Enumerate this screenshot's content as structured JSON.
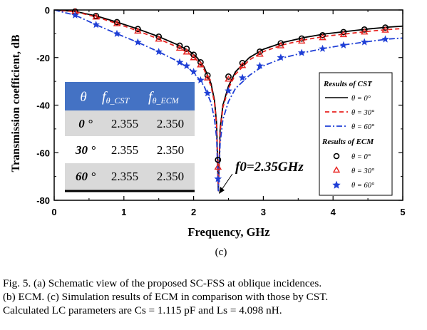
{
  "chart_data": {
    "type": "line",
    "xlabel": "Frequency, GHz",
    "ylabel": "Transmission coefficient, dB",
    "xlim": [
      0,
      5
    ],
    "ylim": [
      -80,
      0
    ],
    "xticks": [
      "0",
      "1",
      "2",
      "3",
      "4",
      "5"
    ],
    "yticks": [
      "0",
      "-20",
      "-40",
      "-60",
      "-80"
    ],
    "panel_label": "(c)",
    "series": [
      {
        "name": "θ = 0°",
        "group": "CST",
        "style": "solid",
        "color": "#000000",
        "x": [
          0,
          0.3,
          0.6,
          0.9,
          1.2,
          1.5,
          1.8,
          1.95,
          2.05,
          2.15,
          2.25,
          2.3,
          2.33,
          2.355,
          2.38,
          2.42,
          2.5,
          2.6,
          2.8,
          3.0,
          3.3,
          3.6,
          3.9,
          4.2,
          4.5,
          4.8,
          5.0
        ],
        "y": [
          0,
          -0.6,
          -2.5,
          -5.1,
          -8,
          -11.2,
          -15,
          -17.5,
          -20,
          -24,
          -31,
          -38,
          -48,
          -76,
          -50,
          -40,
          -32,
          -26,
          -20,
          -16.5,
          -13.5,
          -11.5,
          -10,
          -9,
          -8,
          -7.2,
          -6.8
        ]
      },
      {
        "name": "θ = 30°",
        "group": "CST",
        "style": "dashed",
        "color": "#e8211e",
        "x": [
          0,
          0.3,
          0.6,
          0.9,
          1.2,
          1.5,
          1.8,
          1.95,
          2.05,
          2.15,
          2.25,
          2.3,
          2.33,
          2.355,
          2.38,
          2.42,
          2.5,
          2.6,
          2.8,
          3.0,
          3.3,
          3.6,
          3.9,
          4.2,
          4.5,
          4.8,
          5.0
        ],
        "y": [
          0,
          -0.7,
          -2.9,
          -5.7,
          -8.8,
          -12.2,
          -16,
          -18.6,
          -21.2,
          -25,
          -32,
          -39,
          -49,
          -76,
          -51,
          -41,
          -33,
          -27,
          -21,
          -17.5,
          -14.5,
          -12.5,
          -11,
          -10,
          -9,
          -8.2,
          -7.8
        ]
      },
      {
        "name": "θ = 60°",
        "group": "CST",
        "style": "dashdot",
        "color": "#1f3fd6",
        "x": [
          0,
          0.3,
          0.6,
          0.9,
          1.2,
          1.5,
          1.8,
          1.95,
          2.05,
          2.15,
          2.25,
          2.3,
          2.33,
          2.355,
          2.38,
          2.42,
          2.5,
          2.6,
          2.8,
          3.0,
          3.3,
          3.6,
          3.9,
          4.2,
          4.5,
          4.8,
          5.0
        ],
        "y": [
          0,
          -2.2,
          -6.2,
          -10,
          -13.6,
          -17.6,
          -22,
          -25,
          -28,
          -32,
          -39,
          -46,
          -54,
          -76,
          -56,
          -46,
          -38.5,
          -33,
          -27.5,
          -23.5,
          -20,
          -17.8,
          -16,
          -14.5,
          -13.3,
          -12.2,
          -11.8
        ]
      },
      {
        "name": "θ = 0°",
        "group": "ECM",
        "marker": "circle",
        "color": "#000000",
        "x": [
          0.3,
          0.6,
          0.9,
          1.2,
          1.5,
          1.8,
          1.9,
          2.0,
          2.1,
          2.2,
          2.35,
          2.5,
          2.7,
          2.95,
          3.25,
          3.55,
          3.85,
          4.15,
          4.45,
          4.75
        ],
        "y": [
          -0.6,
          -2.5,
          -5.1,
          -8,
          -11.2,
          -15,
          -16.3,
          -18.8,
          -22,
          -27.5,
          -63,
          -28,
          -22.3,
          -17.5,
          -14,
          -12,
          -10.6,
          -9.3,
          -8.2,
          -7.4
        ]
      },
      {
        "name": "θ = 30°",
        "group": "ECM",
        "marker": "triangle",
        "color": "#e8211e",
        "x": [
          0.3,
          0.6,
          0.9,
          1.2,
          1.5,
          1.8,
          1.9,
          2.0,
          2.1,
          2.2,
          2.35,
          2.5,
          2.7,
          2.95,
          3.25,
          3.55,
          3.85,
          4.15,
          4.45,
          4.75
        ],
        "y": [
          -0.7,
          -2.9,
          -5.7,
          -8.8,
          -12.2,
          -16,
          -17.6,
          -20,
          -23,
          -28.5,
          -66,
          -29,
          -23.3,
          -18.5,
          -15,
          -13,
          -11.6,
          -10.3,
          -9.2,
          -8.4
        ]
      },
      {
        "name": "θ = 60°",
        "group": "ECM",
        "marker": "star",
        "color": "#1f3fd6",
        "x": [
          0.3,
          0.6,
          0.9,
          1.2,
          1.5,
          1.8,
          1.9,
          2.0,
          2.1,
          2.2,
          2.35,
          2.5,
          2.7,
          2.95,
          3.25,
          3.55,
          3.85,
          4.15,
          4.45,
          4.75
        ],
        "y": [
          -2.2,
          -6.2,
          -10,
          -13.6,
          -17.6,
          -22,
          -23.5,
          -26,
          -29.5,
          -35,
          -71,
          -34,
          -28.5,
          -23.5,
          -20,
          -18,
          -16.3,
          -14.8,
          -13.5,
          -12.3
        ]
      }
    ],
    "legend": {
      "position": "right",
      "groups": [
        {
          "title": "Results of CST",
          "entries": [
            "θ = 0°",
            "θ = 30°",
            "θ = 60°"
          ]
        },
        {
          "title": "Results of ECM",
          "entries": [
            "θ = 0°",
            "θ = 30°",
            "θ = 60°"
          ]
        }
      ]
    },
    "annotation": {
      "text": "f0=2.35GHz",
      "target_x": 2.35,
      "target_y": -77
    },
    "table": {
      "header": {
        "theta": "θ",
        "cst_main": "f",
        "cst_sub": "θ_CST",
        "ecm_main": "f",
        "ecm_sub": "θ_ECM"
      },
      "rows": [
        {
          "angle": "0 °",
          "cst": "2.355",
          "ecm": "2.350"
        },
        {
          "angle": "30 °",
          "cst": "2.355",
          "ecm": "2.350"
        },
        {
          "angle": "60 °",
          "cst": "2.355",
          "ecm": "2.350"
        }
      ]
    }
  },
  "caption": {
    "line1": "Fig. 5.   (a) Schematic view of the proposed SC-FSS at oblique incidences.",
    "line2": "(b) ECM. (c) Simulation results of ECM in comparison with those by CST.",
    "line3": "Calculated LC parameters are Cs = 1.115 pF and Ls = 4.098 nH."
  }
}
